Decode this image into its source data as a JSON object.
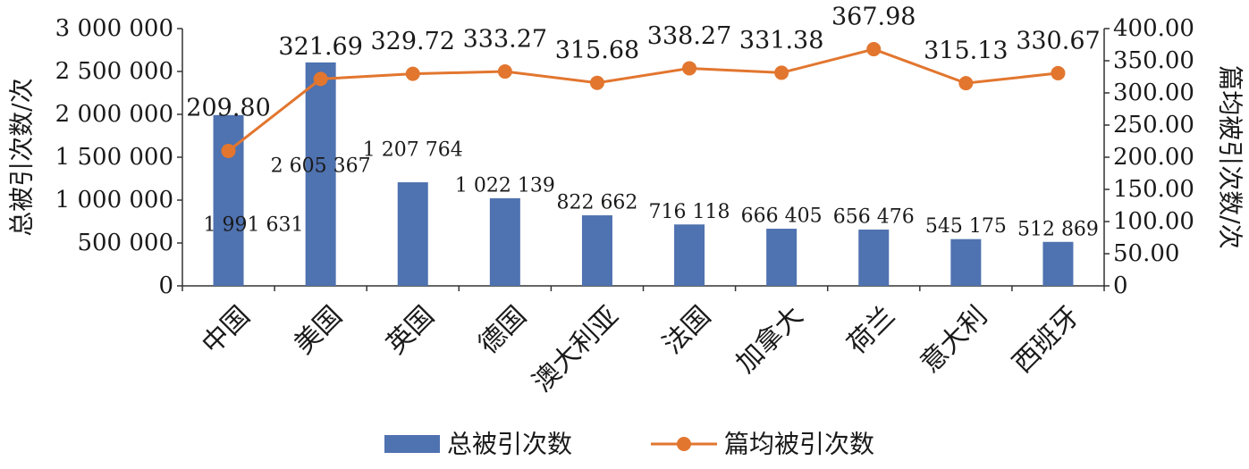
{
  "chart_data": {
    "type": "bar",
    "categories": [
      "中国",
      "美国",
      "英国",
      "德国",
      "澳大利亚",
      "法国",
      "加拿大",
      "荷兰",
      "意大利",
      "西班牙"
    ],
    "series": [
      {
        "name": "总被引次数",
        "type": "bar",
        "axis": "left",
        "color": "#4f72b0",
        "values": [
          1991631,
          2605367,
          1207764,
          1022139,
          822662,
          716118,
          666405,
          656476,
          545175,
          512869
        ],
        "value_labels": [
          "1 991 631",
          "2 605 367",
          "1 207 764",
          "1 022 139",
          "822 662",
          "716 118",
          "666 405",
          "656 476",
          "545 175",
          "512 869"
        ]
      },
      {
        "name": "篇均被引次数",
        "type": "line",
        "axis": "right",
        "color": "#e2762f",
        "values": [
          209.8,
          321.69,
          329.72,
          333.27,
          315.68,
          338.27,
          331.38,
          367.98,
          315.13,
          330.67
        ],
        "value_labels": [
          "209.80",
          "321.69",
          "329.72",
          "333.27",
          "315.68",
          "338.27",
          "331.38",
          "367.98",
          "315.13",
          "330.67"
        ]
      }
    ],
    "ylabel": "总被引次数/次",
    "y2label": "篇均被引次数/次",
    "ylim": [
      0,
      3000000
    ],
    "y2lim": [
      0,
      400
    ],
    "yticks": [
      "0",
      "500 000",
      "1 000 000",
      "1 500 000",
      "2 000 000",
      "2 500 000",
      "3 000 000"
    ],
    "y2ticks": [
      "0",
      "50.00",
      "100.00",
      "150.00",
      "200.00",
      "250.00",
      "300.00",
      "350.00",
      "400.00"
    ],
    "grid": false,
    "legend_position": "bottom"
  }
}
